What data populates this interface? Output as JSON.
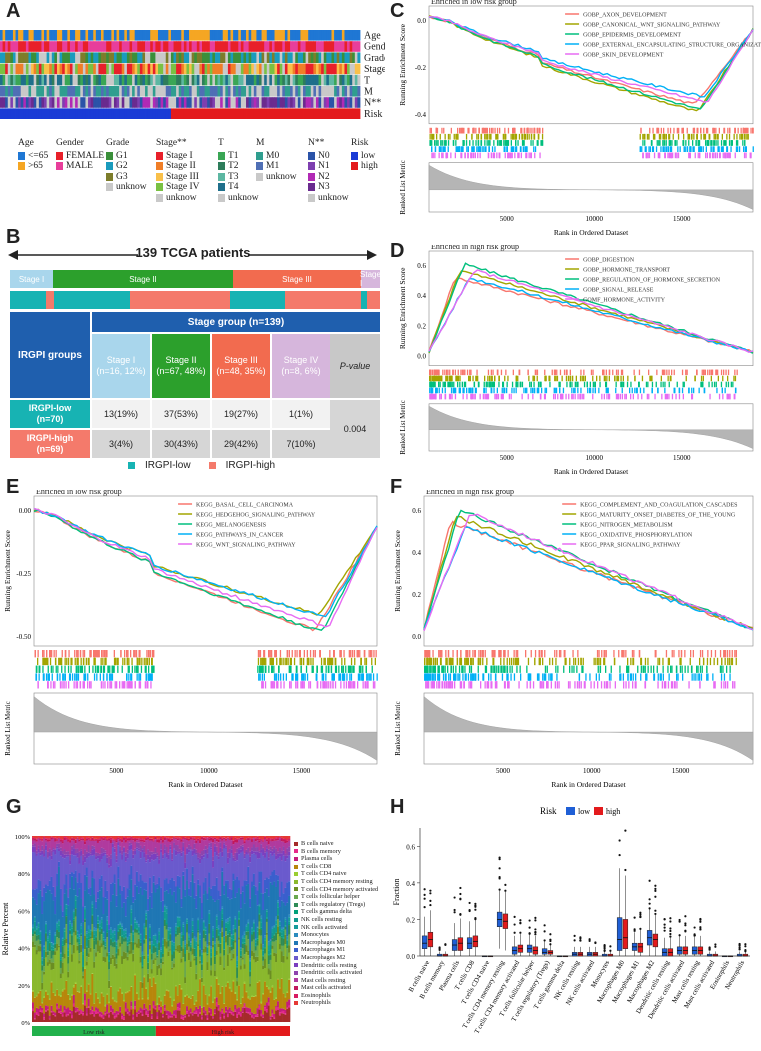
{
  "panels": {
    "a": "A",
    "b": "B",
    "c": "C",
    "d": "D",
    "e": "E",
    "f": "F",
    "g": "G",
    "h": "H"
  },
  "panel_a": {
    "tracks": [
      "Age",
      "Gender",
      "Grade",
      "Stage**",
      "T",
      "M",
      "N**",
      "Risk"
    ],
    "legend": [
      {
        "title": "Age",
        "items": [
          {
            "label": "<=65",
            "color": "#1f77d4"
          },
          {
            "label": ">65",
            "color": "#f5a623"
          }
        ]
      },
      {
        "title": "Gender",
        "items": [
          {
            "label": "FEMALE",
            "color": "#e8202a"
          },
          {
            "label": "MALE",
            "color": "#e83e9b"
          }
        ]
      },
      {
        "title": "Grade",
        "items": [
          {
            "label": "G1",
            "color": "#3a8f3a"
          },
          {
            "label": "G2",
            "color": "#1a9bbd"
          },
          {
            "label": "G3",
            "color": "#7d7d2b"
          },
          {
            "label": "unknow",
            "color": "#c9c9c9"
          }
        ]
      },
      {
        "title": "Stage**",
        "items": [
          {
            "label": "Stage I",
            "color": "#e8202a"
          },
          {
            "label": "Stage II",
            "color": "#f07e27"
          },
          {
            "label": "Stage III",
            "color": "#f9c04a"
          },
          {
            "label": "Stage IV",
            "color": "#7ac143"
          },
          {
            "label": "unknow",
            "color": "#c9c9c9"
          }
        ]
      },
      {
        "title": "T",
        "items": [
          {
            "label": "T1",
            "color": "#3aa655"
          },
          {
            "label": "T2",
            "color": "#2e7d5b"
          },
          {
            "label": "T3",
            "color": "#5db7a2"
          },
          {
            "label": "T4",
            "color": "#1f6f8b"
          },
          {
            "label": "unknow",
            "color": "#c9c9c9"
          }
        ]
      },
      {
        "title": "M",
        "items": [
          {
            "label": "M0",
            "color": "#2f9e8f"
          },
          {
            "label": "M1",
            "color": "#4f6fb5"
          },
          {
            "label": "unknow",
            "color": "#c9c9c9"
          }
        ]
      },
      {
        "title": "N**",
        "items": [
          {
            "label": "N0",
            "color": "#2b53a8"
          },
          {
            "label": "N1",
            "color": "#7e3fb0"
          },
          {
            "label": "N2",
            "color": "#b12ab5"
          },
          {
            "label": "N3",
            "color": "#6a2b8f"
          },
          {
            "label": "unknow",
            "color": "#c9c9c9"
          }
        ]
      },
      {
        "title": "Risk",
        "items": [
          {
            "label": "low",
            "color": "#1a3bd6"
          },
          {
            "label": "high",
            "color": "#e31a1c"
          }
        ]
      }
    ]
  },
  "panel_b": {
    "title": "139 TCGA patients",
    "stage_bar": [
      "Stage I",
      "Stage II",
      "Stage III",
      "Stage I"
    ],
    "header_left": "IRGPI groups",
    "header_group": "Stage group (n=139)",
    "col_heads": [
      {
        "name": "Stage I",
        "n": "(n=16, 12%)",
        "color": "#a9d6ec"
      },
      {
        "name": "Stage II",
        "n": "(n=67, 48%)",
        "color": "#2ca02c"
      },
      {
        "name": "Stage III",
        "n": "(n=48, 35%)",
        "color": "#f26b4f"
      },
      {
        "name": "Stage IV",
        "n": "(n=8, 6%)",
        "color": "#d6b6dc"
      }
    ],
    "pvalue_head": "P-value",
    "rows": [
      {
        "name": "IRGPI-low",
        "n": "(n=70)",
        "values": [
          "13(19%)",
          "37(53%)",
          "19(27%)",
          "1(1%)"
        ]
      },
      {
        "name": "IRGPI-high",
        "n": "(n=69)",
        "values": [
          "3(4%)",
          "30(43%)",
          "29(42%)",
          "7(10%)"
        ]
      }
    ],
    "pvalue": "0.004",
    "legend": [
      "IRGPI-low",
      "IRGPI-high"
    ],
    "colors": {
      "low": "#17b3b3",
      "high": "#f47a6b"
    }
  },
  "panel_c": {
    "title": "Enriched in low risk group",
    "ylabel": "Running Enrichment Score",
    "ylabel2": "Ranked List Metric",
    "xlabel": "Rank in Ordered Dataset",
    "yticks": [
      "0.0",
      "-0.2",
      "-0.4"
    ],
    "xticks": [
      "5000",
      "10000",
      "15000"
    ],
    "series": [
      {
        "name": "GOBP_AXON_DEVELOPMENT",
        "color": "#f8766d"
      },
      {
        "name": "GOBP_CANONICAL_WNT_SIGNALING_PATHWAY",
        "color": "#a3a500"
      },
      {
        "name": "GOBP_EPIDERMIS_DEVELOPMENT",
        "color": "#00bf7d"
      },
      {
        "name": "GOBP_EXTERNAL_ENCAPSULATING_STRUCTURE_ORGANIZATION",
        "color": "#00b0f6"
      },
      {
        "name": "GOBP_SKIN_DEVELOPMENT",
        "color": "#e76bf3"
      }
    ]
  },
  "panel_d": {
    "title": "Enriched in high risk group",
    "ylabel": "Running Enrichment Score",
    "ylabel2": "Ranked List Metric",
    "xlabel": "Rank in Ordered Dataset",
    "yticks": [
      "0.6",
      "0.4",
      "0.2",
      "0.0"
    ],
    "xticks": [
      "5000",
      "10000",
      "15000"
    ],
    "series": [
      {
        "name": "GOBP_DIGESTION",
        "color": "#f8766d"
      },
      {
        "name": "GOBP_HORMONE_TRANSPORT",
        "color": "#a3a500"
      },
      {
        "name": "GOBP_REGULATION_OF_HORMONE_SECRETION",
        "color": "#00bf7d"
      },
      {
        "name": "GOBP_SIGNAL_RELEASE",
        "color": "#00b0f6"
      },
      {
        "name": "GOMF_HORMONE_ACTIVITY",
        "color": "#e76bf3"
      }
    ]
  },
  "panel_e": {
    "title": "Enriched in low risk group",
    "ylabel": "Running Enrichment Score",
    "ylabel2": "Ranked List Metric",
    "xlabel": "Rank in Ordered Dataset",
    "yticks": [
      "0.00",
      "-0.25",
      "-0.50"
    ],
    "xticks": [
      "5000",
      "10000",
      "15000"
    ],
    "series": [
      {
        "name": "KEGG_BASAL_CELL_CARCINOMA",
        "color": "#f8766d"
      },
      {
        "name": "KEGG_HEDGEHOG_SIGNALING_PATHWAY",
        "color": "#a3a500"
      },
      {
        "name": "KEGG_MELANOGENESIS",
        "color": "#00bf7d"
      },
      {
        "name": "KEGG_PATHWAYS_IN_CANCER",
        "color": "#00b0f6"
      },
      {
        "name": "KEGG_WNT_SIGNALING_PATHWAY",
        "color": "#e76bf3"
      }
    ]
  },
  "panel_f": {
    "title": "Enriched in high risk group",
    "ylabel": "Running Enrichment Score",
    "ylabel2": "Ranked List Metric",
    "xlabel": "Rank in Ordered Dataset",
    "yticks": [
      "0.6",
      "0.4",
      "0.2",
      "0.0"
    ],
    "xticks": [
      "5000",
      "10000",
      "15000"
    ],
    "series": [
      {
        "name": "KEGG_COMPLEMENT_AND_COAGULATION_CASCADES",
        "color": "#f8766d"
      },
      {
        "name": "KEGG_MATURITY_ONSET_DIABETES_OF_THE_YOUNG",
        "color": "#a3a500"
      },
      {
        "name": "KEGG_NITROGEN_METABOLISM",
        "color": "#00bf7d"
      },
      {
        "name": "KEGG_OXIDATIVE_PHOSPHORYLATION",
        "color": "#00b0f6"
      },
      {
        "name": "KEGG_PPAR_SIGNALING_PATHWAY",
        "color": "#e76bf3"
      }
    ]
  },
  "panel_g": {
    "ylabel": "Relative Percent",
    "yticks": [
      "100%",
      "80%",
      "60%",
      "40%",
      "20%",
      "0%"
    ],
    "groups": [
      "Low risk",
      "High risk"
    ],
    "cells": [
      "B cells naive",
      "B cells memory",
      "Plasma cells",
      "T cells CD8",
      "T cells CD4 naive",
      "T cells CD4 memory resting",
      "T cells CD4 memory activated",
      "T cells follicular helper",
      "T cells regulatory (Tregs)",
      "T cells gamma delta",
      "NK cells resting",
      "NK cells activated",
      "Monocytes",
      "Macrophages M0",
      "Macrophages M1",
      "Macrophages M2",
      "Dendritic cells resting",
      "Dendritic cells activated",
      "Mast cells resting",
      "Mast cells activated",
      "Eosinophils",
      "Neutrophils"
    ],
    "colors": [
      "#a52a2a",
      "#e7298a",
      "#c51b7d",
      "#b8860b",
      "#9acd32",
      "#8ab82d",
      "#6b8e23",
      "#6aa84f",
      "#2e8b57",
      "#00a07a",
      "#11998e",
      "#159b9b",
      "#2b8cbe",
      "#1f77b4",
      "#3a5fcd",
      "#6a5acd",
      "#7b3fbf",
      "#8e44ad",
      "#b03a9e",
      "#c2185b",
      "#d81b60",
      "#e53935"
    ]
  },
  "chart_data": [
    {
      "type": "box",
      "title": "Risk",
      "legend": [
        "low",
        "high"
      ],
      "ylabel": "Fraction",
      "ylim": [
        0,
        0.7
      ],
      "yticks": [
        "0.6",
        "0.4",
        "0.2",
        "0.0"
      ],
      "colors": {
        "low": "#1f5fd6",
        "high": "#e31a1c"
      },
      "categories": [
        "B cells naive",
        "B cells memory",
        "Plasma cells",
        "T cells CD8",
        "T cells CD4 naive",
        "T cells CD4 memory resting",
        "T cells CD4 memory activated",
        "T cells follicular helper",
        "T cells regulatory (Tregs)",
        "T cells gamma delta",
        "NK cells resting",
        "NK cells activated",
        "Monocytes",
        "Macrophages M0",
        "Macrophages M1",
        "Macrophages M2",
        "Dendritic cells resting",
        "Dendritic cells activated",
        "Mast cells resting",
        "Mast cells activated",
        "Eosinophils",
        "Neutrophils"
      ],
      "series": [
        {
          "name": "low",
          "q1": [
            0.04,
            0.0,
            0.03,
            0.04,
            0.0,
            0.16,
            0.01,
            0.02,
            0.01,
            0.0,
            0.0,
            0.0,
            0.0,
            0.03,
            0.03,
            0.06,
            0.0,
            0.01,
            0.01,
            0.0,
            0.0,
            0.0
          ],
          "median": [
            0.07,
            0.0,
            0.06,
            0.07,
            0.0,
            0.2,
            0.03,
            0.04,
            0.02,
            0.0,
            0.01,
            0.01,
            0.0,
            0.09,
            0.05,
            0.1,
            0.02,
            0.03,
            0.03,
            0.0,
            0.0,
            0.0
          ],
          "q3": [
            0.11,
            0.01,
            0.09,
            0.1,
            0.0,
            0.24,
            0.05,
            0.06,
            0.04,
            0.0,
            0.02,
            0.02,
            0.01,
            0.21,
            0.07,
            0.14,
            0.04,
            0.05,
            0.05,
            0.01,
            0.0,
            0.01
          ]
        },
        {
          "name": "high",
          "q1": [
            0.05,
            0.0,
            0.03,
            0.05,
            0.0,
            0.15,
            0.02,
            0.01,
            0.01,
            0.0,
            0.0,
            0.0,
            0.0,
            0.04,
            0.02,
            0.05,
            0.0,
            0.01,
            0.01,
            0.0,
            0.0,
            0.0
          ],
          "median": [
            0.09,
            0.0,
            0.07,
            0.08,
            0.0,
            0.19,
            0.04,
            0.03,
            0.02,
            0.0,
            0.01,
            0.01,
            0.0,
            0.1,
            0.05,
            0.09,
            0.02,
            0.03,
            0.03,
            0.0,
            0.0,
            0.0
          ],
          "q3": [
            0.13,
            0.01,
            0.1,
            0.11,
            0.0,
            0.23,
            0.06,
            0.05,
            0.03,
            0.0,
            0.02,
            0.02,
            0.01,
            0.2,
            0.07,
            0.12,
            0.04,
            0.05,
            0.05,
            0.01,
            0.0,
            0.01
          ]
        }
      ]
    }
  ]
}
